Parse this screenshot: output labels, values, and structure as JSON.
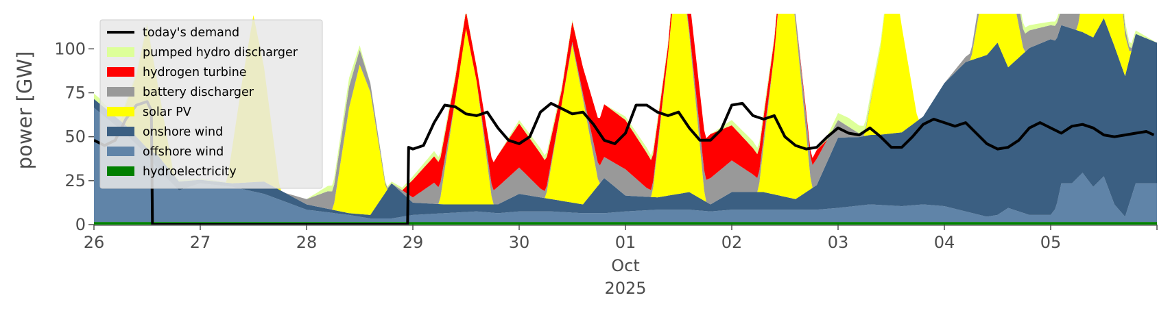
{
  "chart_data": {
    "type": "area",
    "title": "",
    "xlabel": "",
    "ylabel": "power [GW]",
    "ylim": [
      0,
      120
    ],
    "xlim": [
      "2025-09-26T00:00",
      "2025-10-05T23:00"
    ],
    "yticks": [
      0,
      25,
      50,
      75,
      100
    ],
    "xticks": [
      {
        "at": "2025-09-26",
        "label": "26"
      },
      {
        "at": "2025-09-27",
        "label": "27"
      },
      {
        "at": "2025-09-28",
        "label": "28"
      },
      {
        "at": "2025-09-29",
        "label": "29"
      },
      {
        "at": "2025-09-30",
        "label": "30"
      },
      {
        "at": "2025-10-01",
        "label": "01"
      },
      {
        "at": "2025-10-02",
        "label": "02"
      },
      {
        "at": "2025-10-03",
        "label": "03"
      },
      {
        "at": "2025-10-04",
        "label": "04"
      },
      {
        "at": "2025-10-05",
        "label": "05"
      }
    ],
    "xtick_sublabels": [
      "Oct",
      "2025"
    ],
    "grid": false,
    "legend_position": "upper-left",
    "x_unit": "days since 2025-09-26 00:00",
    "stack": [
      {
        "name": "hydroelectricity",
        "color": "#008000",
        "x": [
          0,
          10
        ],
        "values": [
          1.5,
          1.5
        ]
      },
      {
        "name": "offshore wind",
        "color": "#6084a8",
        "x": [
          0,
          0.1,
          0.3,
          0.5,
          0.6,
          0.8,
          1.0,
          1.3,
          1.6,
          2.0,
          2.4,
          2.6,
          2.8,
          3.0,
          3.3,
          3.6,
          3.8,
          4.0,
          4.3,
          4.6,
          4.8,
          5.0,
          5.3,
          5.6,
          5.8,
          6.0,
          6.3,
          6.6,
          6.8,
          7.0,
          7.3,
          7.6,
          7.8,
          8.0,
          8.2,
          8.4,
          8.5,
          8.6,
          8.8,
          9.0,
          9.05,
          9.1,
          9.2,
          9.3,
          9.4,
          9.5,
          9.6,
          9.7,
          9.8,
          10.0
        ],
        "values": [
          65,
          60,
          50,
          38,
          30,
          18,
          22,
          20,
          16,
          7,
          4,
          2,
          2,
          4,
          5,
          6,
          5,
          6,
          6,
          5,
          5,
          6,
          7,
          7,
          6,
          7,
          7,
          7,
          7,
          8,
          10,
          9,
          10,
          9,
          6,
          3,
          4,
          8,
          4,
          4,
          8,
          22,
          22,
          28,
          20,
          26,
          10,
          3,
          22,
          22
        ]
      },
      {
        "name": "onshore wind",
        "color": "#3b5f82",
        "x": [
          0,
          0.1,
          0.3,
          0.5,
          0.6,
          0.8,
          1.0,
          1.3,
          1.6,
          2.0,
          2.4,
          2.6,
          2.8,
          3.0,
          3.3,
          3.6,
          3.8,
          4.0,
          4.3,
          4.6,
          4.8,
          5.0,
          5.3,
          5.6,
          5.8,
          6.0,
          6.3,
          6.6,
          6.8,
          7.0,
          7.2,
          7.4,
          7.6,
          7.8,
          8.0,
          8.2,
          8.4,
          8.5,
          8.6,
          8.8,
          9.0,
          9.05,
          9.1,
          9.2,
          9.3,
          9.4,
          9.5,
          9.6,
          9.7,
          9.8,
          10.0
        ],
        "values": [
          5,
          5,
          5,
          4,
          8,
          5,
          2,
          2,
          7,
          3,
          1,
          2,
          20,
          7,
          5,
          4,
          5,
          10,
          7,
          5,
          20,
          9,
          7,
          10,
          4,
          10,
          10,
          6,
          14,
          40,
          39,
          40,
          42,
          50,
          70,
          85,
          92,
          98,
          80,
          95,
          100,
          95,
          90,
          88,
          80,
          85,
          90,
          90,
          80,
          85,
          80
        ]
      },
      {
        "name": "solar PV",
        "color": "#ffff00",
        "x": [
          0,
          0.25,
          0.4,
          0.5,
          0.6,
          0.75,
          1.0,
          1.25,
          1.4,
          1.5,
          1.6,
          1.75,
          2.0,
          2.25,
          2.4,
          2.5,
          2.6,
          2.75,
          3.0,
          3.25,
          3.4,
          3.5,
          3.6,
          3.75,
          4.0,
          4.25,
          4.4,
          4.5,
          4.6,
          4.75,
          5.0,
          5.25,
          5.4,
          5.5,
          5.6,
          5.75,
          6.0,
          6.25,
          6.4,
          6.5,
          6.6,
          6.75,
          7.0,
          7.25,
          7.4,
          7.5,
          7.6,
          7.75,
          8.0,
          8.25,
          8.4,
          8.5,
          8.6,
          8.75,
          9.0,
          9.25,
          9.4,
          9.5,
          9.6,
          9.75,
          10.0
        ],
        "values": [
          0,
          0,
          35,
          70,
          40,
          0,
          0,
          0,
          60,
          95,
          65,
          0,
          0,
          0,
          60,
          85,
          70,
          0,
          0,
          0,
          60,
          100,
          70,
          0,
          0,
          0,
          55,
          90,
          60,
          0,
          0,
          0,
          80,
          140,
          90,
          0,
          0,
          0,
          80,
          150,
          100,
          0,
          0,
          0,
          50,
          100,
          60,
          0,
          0,
          0,
          50,
          90,
          55,
          0,
          0,
          0,
          60,
          110,
          70,
          0,
          0
        ]
      },
      {
        "name": "battery discharger",
        "color": "#999999",
        "x": [
          0,
          1.8,
          2.0,
          2.2,
          2.4,
          2.6,
          2.8,
          3.0,
          3.2,
          3.4,
          3.6,
          3.8,
          4.0,
          4.2,
          4.4,
          4.6,
          4.8,
          5.0,
          5.2,
          5.4,
          5.6,
          5.8,
          6.0,
          6.2,
          6.4,
          6.6,
          6.8,
          7.0,
          7.2,
          7.4,
          7.6,
          7.8,
          8.0,
          8.2,
          8.4,
          8.6,
          8.8,
          9.0,
          9.2,
          9.4,
          9.6,
          9.8,
          10.0
        ],
        "values": [
          0,
          0,
          3,
          10,
          12,
          5,
          0,
          3,
          12,
          0,
          0,
          10,
          15,
          5,
          0,
          3,
          12,
          15,
          5,
          0,
          3,
          15,
          18,
          10,
          0,
          5,
          15,
          10,
          2,
          0,
          0,
          0,
          0,
          3,
          8,
          12,
          10,
          8,
          10,
          10,
          8,
          0,
          0
        ]
      },
      {
        "name": "hydrogen turbine",
        "color": "#ff0000",
        "x": [
          0,
          2.9,
          3.0,
          3.2,
          3.4,
          3.6,
          3.8,
          4.0,
          4.2,
          4.4,
          4.6,
          4.8,
          5.0,
          5.2,
          5.4,
          5.6,
          5.8,
          6.0,
          6.2,
          6.4,
          6.6,
          6.8,
          6.9,
          7.0,
          10.0
        ],
        "values": [
          0,
          0,
          10,
          15,
          12,
          8,
          18,
          25,
          20,
          8,
          15,
          30,
          28,
          20,
          5,
          18,
          25,
          20,
          15,
          8,
          0,
          5,
          0,
          0,
          0
        ]
      },
      {
        "name": "pumped hydro discharger",
        "color": "#ddff99",
        "x": [
          0,
          0.05,
          0.1,
          1.5,
          2.0,
          2.2,
          2.4,
          2.6,
          3.0,
          3.2,
          3.4,
          3.6,
          3.8,
          4.0,
          4.2,
          4.4,
          4.6,
          4.8,
          5.0,
          5.2,
          5.4,
          5.6,
          5.8,
          6.0,
          6.2,
          6.4,
          6.6,
          6.8,
          7.0,
          7.1,
          7.3,
          7.5,
          7.6,
          8.0,
          8.4,
          8.6,
          8.8,
          9.0,
          9.2,
          9.4,
          9.6,
          9.8,
          10.0
        ],
        "values": [
          3,
          3,
          2,
          0,
          0,
          3,
          5,
          0,
          2,
          3,
          2,
          0,
          0,
          2,
          3,
          2,
          0,
          0,
          2,
          3,
          2,
          0,
          0,
          3,
          4,
          2,
          0,
          0,
          4,
          5,
          4,
          2,
          0,
          0,
          0,
          5,
          3,
          2,
          4,
          3,
          5,
          2,
          0
        ]
      }
    ],
    "demand": {
      "name": "today's demand",
      "color": "#000000",
      "x": [
        0,
        0.1,
        0.2,
        0.3,
        0.4,
        0.5,
        0.54,
        0.55,
        2.95,
        2.96,
        3.0,
        3.1,
        3.2,
        3.3,
        3.4,
        3.5,
        3.6,
        3.7,
        3.8,
        3.9,
        4.0,
        4.1,
        4.2,
        4.3,
        4.4,
        4.5,
        4.6,
        4.7,
        4.8,
        4.9,
        5.0,
        5.1,
        5.2,
        5.3,
        5.4,
        5.5,
        5.6,
        5.7,
        5.8,
        5.9,
        6.0,
        6.1,
        6.2,
        6.3,
        6.4,
        6.5,
        6.6,
        6.7,
        6.8,
        6.9,
        7.0,
        7.1,
        7.2,
        7.3,
        7.4,
        7.5,
        7.6,
        7.7,
        7.8,
        7.9,
        8.0,
        8.1,
        8.2,
        8.3,
        8.4,
        8.5,
        8.6,
        8.7,
        8.8,
        8.9,
        9.0,
        9.1,
        9.2,
        9.3,
        9.4,
        9.5,
        9.6,
        9.7,
        9.8,
        9.9,
        9.97
      ],
      "values": [
        48,
        45,
        48,
        60,
        68,
        70,
        65,
        0,
        0,
        44,
        43,
        45,
        58,
        68,
        67,
        63,
        62,
        64,
        55,
        48,
        46,
        50,
        64,
        69,
        66,
        63,
        64,
        57,
        48,
        46,
        52,
        68,
        68,
        64,
        62,
        64,
        55,
        48,
        48,
        54,
        68,
        69,
        62,
        60,
        62,
        50,
        45,
        43,
        44,
        50,
        55,
        52,
        51,
        55,
        50,
        44,
        44,
        50,
        57,
        60,
        58,
        56,
        58,
        52,
        46,
        43,
        44,
        48,
        55,
        58,
        55,
        52,
        56,
        57,
        55,
        51,
        50,
        51,
        52,
        53,
        51
      ]
    }
  },
  "legend": {
    "items": [
      {
        "label": "today's demand",
        "color": "#000000",
        "kind": "line"
      },
      {
        "label": "pumped hydro discharger",
        "color": "#ddff99",
        "kind": "patch"
      },
      {
        "label": "hydrogen turbine",
        "color": "#ff0000",
        "kind": "patch"
      },
      {
        "label": "battery discharger",
        "color": "#999999",
        "kind": "patch"
      },
      {
        "label": "solar PV",
        "color": "#ffff00",
        "kind": "patch"
      },
      {
        "label": "onshore wind",
        "color": "#3b5f82",
        "kind": "patch"
      },
      {
        "label": "offshore wind",
        "color": "#6084a8",
        "kind": "patch"
      },
      {
        "label": "hydroelectricity",
        "color": "#008000",
        "kind": "patch"
      }
    ]
  }
}
